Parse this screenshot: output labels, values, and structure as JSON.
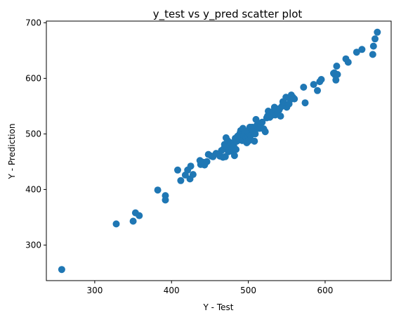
{
  "chart_data": {
    "type": "scatter",
    "title": "y_test vs y_pred scatter plot",
    "xlabel": "Y - Test",
    "ylabel": "Y - Prediction",
    "xlim": [
      237,
      686
    ],
    "ylim": [
      236,
      703
    ],
    "xticks": [
      300,
      400,
      500,
      600
    ],
    "yticks": [
      300,
      400,
      500,
      600,
      700
    ],
    "marker_color": "#1f77b4",
    "grid": false,
    "legend": "none",
    "points": [
      [
        257,
        256
      ],
      [
        328,
        338
      ],
      [
        350,
        343
      ],
      [
        353,
        358
      ],
      [
        358,
        353
      ],
      [
        382,
        399
      ],
      [
        392,
        389
      ],
      [
        392,
        381
      ],
      [
        408,
        435
      ],
      [
        412,
        416
      ],
      [
        418,
        426
      ],
      [
        421,
        435
      ],
      [
        424,
        419
      ],
      [
        425,
        442
      ],
      [
        428,
        427
      ],
      [
        437,
        452
      ],
      [
        438,
        445
      ],
      [
        441,
        449
      ],
      [
        443,
        444
      ],
      [
        446,
        450
      ],
      [
        448,
        463
      ],
      [
        452,
        460
      ],
      [
        454,
        459
      ],
      [
        458,
        465
      ],
      [
        463,
        460
      ],
      [
        465,
        470
      ],
      [
        467,
        458
      ],
      [
        468,
        473
      ],
      [
        469,
        481
      ],
      [
        470,
        459
      ],
      [
        471,
        493
      ],
      [
        472,
        476
      ],
      [
        473,
        488
      ],
      [
        474,
        468
      ],
      [
        475,
        471
      ],
      [
        476,
        482
      ],
      [
        477,
        484
      ],
      [
        478,
        469
      ],
      [
        479,
        474
      ],
      [
        480,
        477
      ],
      [
        481,
        479
      ],
      [
        482,
        461
      ],
      [
        483,
        492
      ],
      [
        484,
        472
      ],
      [
        485,
        487
      ],
      [
        486,
        496
      ],
      [
        488,
        489
      ],
      [
        489,
        501
      ],
      [
        490,
        506
      ],
      [
        491,
        494
      ],
      [
        492,
        488
      ],
      [
        493,
        510
      ],
      [
        494,
        498
      ],
      [
        495,
        502
      ],
      [
        496,
        489
      ],
      [
        497,
        493
      ],
      [
        498,
        484
      ],
      [
        499,
        505
      ],
      [
        500,
        496
      ],
      [
        501,
        488
      ],
      [
        502,
        512
      ],
      [
        503,
        497
      ],
      [
        504,
        509
      ],
      [
        505,
        512
      ],
      [
        506,
        506
      ],
      [
        508,
        487
      ],
      [
        509,
        500
      ],
      [
        510,
        526
      ],
      [
        511,
        515
      ],
      [
        513,
        510
      ],
      [
        515,
        510
      ],
      [
        516,
        519
      ],
      [
        518,
        521
      ],
      [
        520,
        509
      ],
      [
        522,
        504
      ],
      [
        524,
        529
      ],
      [
        525,
        532
      ],
      [
        526,
        541
      ],
      [
        528,
        530
      ],
      [
        530,
        533
      ],
      [
        532,
        540
      ],
      [
        534,
        548
      ],
      [
        535,
        534
      ],
      [
        536,
        544
      ],
      [
        538,
        538
      ],
      [
        540,
        543
      ],
      [
        541,
        546
      ],
      [
        542,
        532
      ],
      [
        544,
        550
      ],
      [
        545,
        558
      ],
      [
        547,
        555
      ],
      [
        548,
        553
      ],
      [
        549,
        566
      ],
      [
        550,
        548
      ],
      [
        552,
        553
      ],
      [
        553,
        554
      ],
      [
        555,
        562
      ],
      [
        556,
        570
      ],
      [
        558,
        566
      ],
      [
        560,
        563
      ],
      [
        572,
        584
      ],
      [
        574,
        556
      ],
      [
        585,
        589
      ],
      [
        590,
        578
      ],
      [
        593,
        594
      ],
      [
        595,
        598
      ],
      [
        611,
        609
      ],
      [
        612,
        610
      ],
      [
        613,
        606
      ],
      [
        614,
        597
      ],
      [
        615,
        622
      ],
      [
        616,
        607
      ],
      [
        627,
        635
      ],
      [
        630,
        629
      ],
      [
        641,
        647
      ],
      [
        648,
        652
      ],
      [
        662,
        643
      ],
      [
        663,
        658
      ],
      [
        665,
        671
      ],
      [
        668,
        683
      ]
    ]
  }
}
